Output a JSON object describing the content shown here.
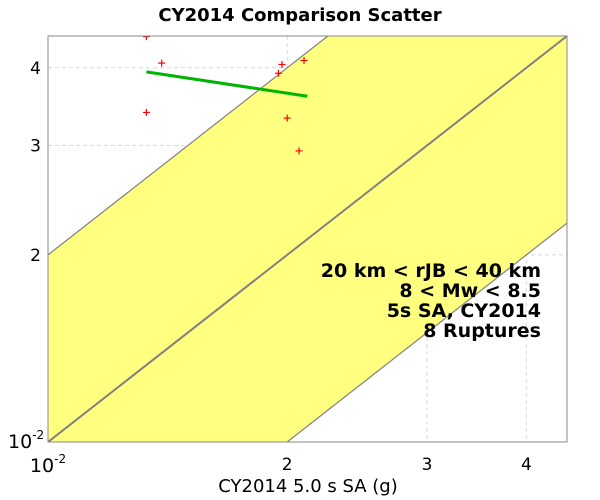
{
  "chart_data": {
    "type": "scatter",
    "title": "CY2014 Comparison Scatter",
    "xlabel": "CY2014 5.0 s SA (g)",
    "ylabel": "",
    "x_scale": "log",
    "y_scale": "log",
    "xlim": [
      0.01,
      0.045
    ],
    "ylim": [
      0.01,
      0.045
    ],
    "x_ticks": [
      {
        "value": 0.01,
        "base": "10",
        "exp": "-2"
      },
      {
        "value": 0.02,
        "label": "2"
      },
      {
        "value": 0.03,
        "label": "3"
      },
      {
        "value": 0.04,
        "label": "4"
      }
    ],
    "y_ticks": [
      {
        "value": 0.01,
        "base": "10",
        "exp": "-2"
      },
      {
        "value": 0.02,
        "label": "2"
      },
      {
        "value": 0.03,
        "label": "3"
      },
      {
        "value": 0.04,
        "label": "4"
      }
    ],
    "grid": true,
    "points": [
      {
        "x": 0.0133,
        "y": 0.0449
      },
      {
        "x": 0.0139,
        "y": 0.0407
      },
      {
        "x": 0.0133,
        "y": 0.0339
      },
      {
        "x": 0.0195,
        "y": 0.0392
      },
      {
        "x": 0.0197,
        "y": 0.0405
      },
      {
        "x": 0.021,
        "y": 0.0411
      },
      {
        "x": 0.02,
        "y": 0.0332
      },
      {
        "x": 0.0207,
        "y": 0.0294
      }
    ],
    "fit_line": {
      "x": [
        0.0133,
        0.0212
      ],
      "y": [
        0.0394,
        0.036
      ]
    },
    "identity_line": {
      "x": [
        0.01,
        0.045
      ],
      "y": [
        0.01,
        0.045
      ]
    },
    "band_lower": {
      "x": [
        0.02,
        0.045
      ],
      "y": [
        0.01,
        0.0225
      ]
    },
    "band_upper": {
      "x": [
        0.01,
        0.0225
      ],
      "y": [
        0.02,
        0.045
      ]
    },
    "annotation": [
      "20 km < rJB < 40 km",
      "8 < Mw < 8.5",
      "5s SA, CY2014",
      "8 Ruptures"
    ],
    "colors": {
      "band": "#ffff80",
      "points": "#ff0000",
      "fit": "#00b400",
      "ref_lines": "#808080",
      "grid": "#d8d8d8"
    }
  }
}
